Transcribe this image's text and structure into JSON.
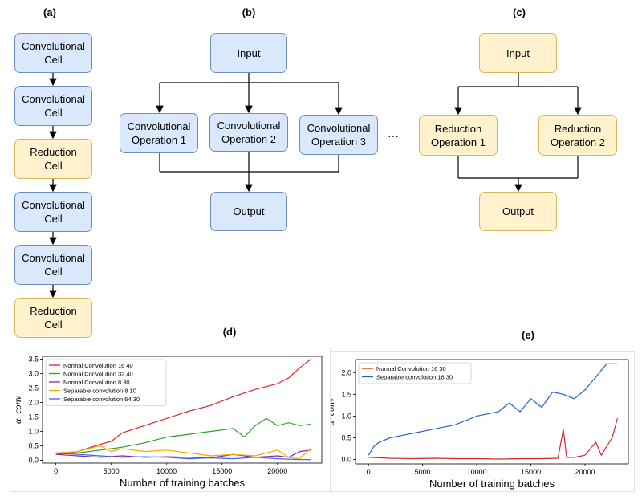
{
  "panels": {
    "a": {
      "label": "(a)",
      "cells": [
        {
          "text": "Convolutional\nCell",
          "kind": "conv"
        },
        {
          "text": "Convolutional\nCell",
          "kind": "conv"
        },
        {
          "text": "Reduction\nCell",
          "kind": "reduction"
        },
        {
          "text": "Convolutional\nCell",
          "kind": "conv"
        },
        {
          "text": "Convolutional\nCell",
          "kind": "conv"
        },
        {
          "text": "Reduction\nCell",
          "kind": "reduction"
        }
      ]
    },
    "b": {
      "label": "(b)",
      "input": "Input",
      "output": "Output",
      "ops": [
        "Convolutional\nOperation 1",
        "Convolutional\nOperation 2",
        "Convolutional\nOperation 3"
      ],
      "ellipsis": "···"
    },
    "c": {
      "label": "(c)",
      "input": "Input",
      "output": "Output",
      "ops": [
        "Reduction\nOperation 1",
        "Reduction\nOperation 2"
      ]
    },
    "d": {
      "label": "(d)"
    },
    "e": {
      "label": "(e)"
    }
  },
  "colors": {
    "conv_fill": "#dae8fc",
    "conv_border": "#6c8ebf",
    "reduction_fill": "#fff2cc",
    "reduction_border": "#d6b656"
  },
  "chart_data": [
    {
      "type": "line",
      "panel": "(d)",
      "xlabel": "Number of training batches",
      "ylabel": "α_conv",
      "xlim": [
        -1200,
        24000
      ],
      "ylim": [
        -0.1,
        3.6
      ],
      "xticks": [
        0,
        5000,
        10000,
        15000,
        20000
      ],
      "yticks": [
        0.0,
        0.5,
        1.0,
        1.5,
        2.0,
        2.5,
        3.0,
        3.5
      ],
      "legend_position": "top-left",
      "series": [
        {
          "name": "Normal Convolution  16  40",
          "color": "#d62728",
          "x": [
            0,
            2000,
            4000,
            5000,
            6000,
            8000,
            10000,
            12000,
            14000,
            16000,
            18000,
            20000,
            21000,
            22000,
            23000
          ],
          "y": [
            0.2,
            0.3,
            0.55,
            0.65,
            0.95,
            1.2,
            1.45,
            1.7,
            1.9,
            2.2,
            2.45,
            2.65,
            2.85,
            3.2,
            3.5
          ]
        },
        {
          "name": "Normal Convolution  32  40",
          "color": "#2ca02c",
          "x": [
            0,
            2000,
            4000,
            6000,
            8000,
            10000,
            12000,
            14000,
            16000,
            17000,
            18000,
            19000,
            20000,
            21000,
            22000,
            23000
          ],
          "y": [
            0.2,
            0.25,
            0.35,
            0.45,
            0.6,
            0.8,
            0.9,
            1.0,
            1.1,
            0.8,
            1.2,
            1.45,
            1.2,
            1.3,
            1.2,
            1.25
          ]
        },
        {
          "name": "Normal Convolution  8  30",
          "color": "#7b2fa0",
          "x": [
            0,
            2000,
            4000,
            6000,
            8000,
            10000,
            12000,
            14000,
            16000,
            18000,
            20000,
            21000,
            22000,
            23000
          ],
          "y": [
            0.2,
            0.15,
            0.1,
            0.15,
            0.1,
            0.12,
            0.1,
            0.08,
            0.2,
            0.1,
            0.15,
            0.1,
            0.3,
            0.35
          ]
        },
        {
          "name": "Separable convolution  8  10",
          "color": "#ffa500",
          "x": [
            0,
            2000,
            4000,
            5000,
            6000,
            8000,
            10000,
            12000,
            14000,
            16000,
            18000,
            20000,
            21000,
            22000,
            23000
          ],
          "y": [
            0.25,
            0.3,
            0.5,
            0.3,
            0.4,
            0.3,
            0.35,
            0.25,
            0.15,
            0.2,
            0.15,
            0.35,
            0.1,
            0.05,
            0.4
          ]
        },
        {
          "name": "Separable convolution  64  30",
          "color": "#4060e0",
          "x": [
            0,
            2000,
            4000,
            6000,
            8000,
            10000,
            12000,
            14000,
            16000,
            18000,
            20000,
            22000,
            23000
          ],
          "y": [
            0.25,
            0.2,
            0.15,
            0.1,
            0.12,
            0.1,
            0.05,
            0.08,
            0.05,
            0.1,
            0.05,
            0.02,
            0.02
          ]
        }
      ]
    },
    {
      "type": "line",
      "panel": "(e)",
      "xlabel": "Number of training batches",
      "ylabel": "α_conv",
      "xlim": [
        -1200,
        24000
      ],
      "ylim": [
        -0.1,
        2.3
      ],
      "xticks": [
        0,
        5000,
        10000,
        15000,
        20000
      ],
      "yticks": [
        0.0,
        0.5,
        1.0,
        1.5,
        2.0
      ],
      "legend_position": "top-left",
      "series": [
        {
          "name": "Normal Convolution  16  30",
          "color": "#d62728",
          "x": [
            0,
            2000,
            4000,
            6000,
            8000,
            10000,
            12000,
            14000,
            16000,
            17500,
            18000,
            18300,
            19000,
            20000,
            21000,
            21500,
            22000,
            22500,
            23000
          ],
          "y": [
            0.05,
            0.03,
            0.02,
            0.03,
            0.02,
            0.02,
            0.01,
            0.02,
            0.02,
            0.03,
            0.7,
            0.05,
            0.05,
            0.1,
            0.4,
            0.1,
            0.3,
            0.5,
            0.95
          ]
        },
        {
          "name": "Separable convolution  16  30",
          "color": "#2a5fcf",
          "x": [
            0,
            500,
            1000,
            2000,
            4000,
            6000,
            8000,
            10000,
            12000,
            13000,
            14000,
            15000,
            16000,
            17000,
            18000,
            19000,
            20000,
            21000,
            22000,
            23000
          ],
          "y": [
            0.1,
            0.3,
            0.4,
            0.5,
            0.6,
            0.7,
            0.8,
            1.0,
            1.1,
            1.3,
            1.1,
            1.4,
            1.2,
            1.55,
            1.5,
            1.4,
            1.6,
            1.9,
            2.2,
            2.2
          ]
        }
      ]
    }
  ]
}
